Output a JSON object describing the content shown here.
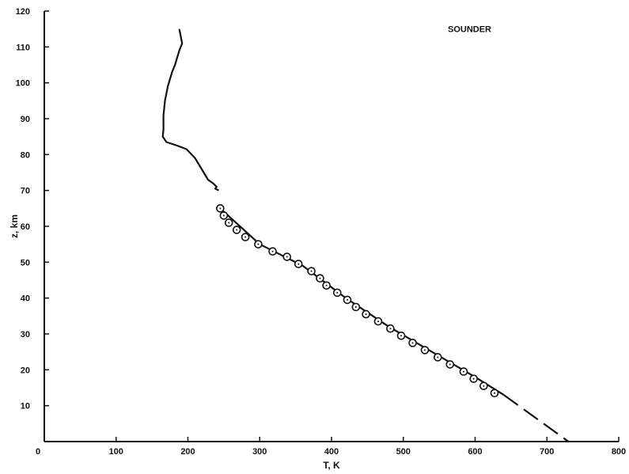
{
  "chart_data": {
    "type": "line",
    "title": "",
    "xlabel": "T, K",
    "ylabel": "z, km",
    "xlim": [
      0,
      800
    ],
    "ylim": [
      0,
      120
    ],
    "grid": false,
    "x_ticks": [
      0,
      100,
      200,
      300,
      400,
      500,
      600,
      700,
      800
    ],
    "y_ticks": [
      10,
      20,
      30,
      40,
      50,
      60,
      70,
      80,
      90,
      100,
      110,
      120
    ],
    "annotations": [
      {
        "text": "SOUNDER"
      }
    ],
    "series": [
      {
        "style": "solid-line",
        "points": [
          [
            188,
            115
          ],
          [
            190,
            113
          ],
          [
            192,
            111
          ],
          [
            188,
            109
          ],
          [
            185,
            107
          ],
          [
            182,
            105
          ],
          [
            178,
            103
          ],
          [
            175,
            101
          ],
          [
            172,
            99
          ],
          [
            170,
            97
          ],
          [
            168,
            95
          ],
          [
            167,
            93
          ],
          [
            166,
            91
          ],
          [
            166,
            89
          ],
          [
            166,
            87
          ],
          [
            165,
            85
          ],
          [
            170,
            83.5
          ],
          [
            185,
            82.5
          ],
          [
            198,
            81.5
          ],
          [
            210,
            79
          ],
          [
            216,
            77
          ],
          [
            222,
            75
          ],
          [
            228,
            73
          ],
          [
            235,
            72
          ],
          [
            240,
            71
          ],
          [
            238,
            70.5
          ],
          [
            243,
            70
          ]
        ]
      },
      {
        "style": "circle-markers",
        "points": [
          [
            245,
            65
          ],
          [
            250,
            63
          ],
          [
            257,
            61
          ],
          [
            268,
            59
          ],
          [
            280,
            57
          ],
          [
            298,
            55
          ],
          [
            318,
            53
          ],
          [
            338,
            51.5
          ],
          [
            354,
            49.5
          ],
          [
            372,
            47.5
          ],
          [
            384,
            45.5
          ],
          [
            393,
            43.5
          ],
          [
            408,
            41.5
          ],
          [
            422,
            39.5
          ],
          [
            434,
            37.5
          ],
          [
            448,
            35.5
          ],
          [
            465,
            33.5
          ],
          [
            482,
            31.5
          ],
          [
            497,
            29.5
          ],
          [
            513,
            27.5
          ],
          [
            530,
            25.5
          ],
          [
            548,
            23.5
          ],
          [
            565,
            21.5
          ],
          [
            584,
            19.5
          ],
          [
            598,
            17.5
          ],
          [
            612,
            15.5
          ],
          [
            627,
            13.5
          ]
        ]
      },
      {
        "style": "solid-line",
        "points": [
          [
            245,
            65
          ],
          [
            300,
            55
          ],
          [
            360,
            49
          ],
          [
            420,
            40
          ],
          [
            480,
            32
          ],
          [
            540,
            25
          ],
          [
            600,
            18
          ],
          [
            640,
            13
          ]
        ]
      },
      {
        "style": "dashed-line",
        "points": [
          [
            640,
            13
          ],
          [
            730,
            0
          ]
        ]
      }
    ]
  }
}
